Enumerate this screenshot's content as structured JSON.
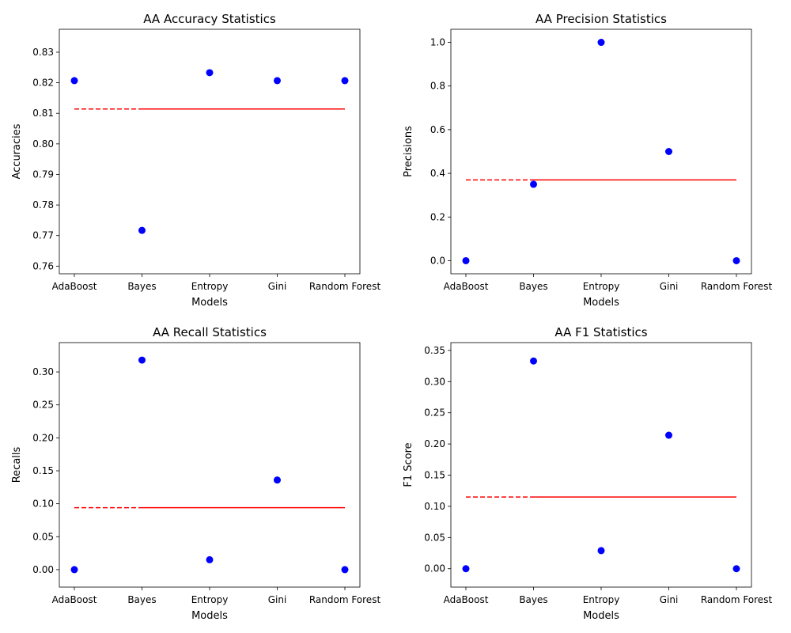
{
  "chart_data": [
    {
      "type": "scatter",
      "title": "AA Accuracy Statistics",
      "xlabel": "Models",
      "ylabel": "Accuracies",
      "categories": [
        "AdaBoost",
        "Bayes",
        "Entropy",
        "Gini",
        "Random Forest"
      ],
      "values": [
        0.8207,
        0.7717,
        0.8233,
        0.8207,
        0.8207
      ],
      "mean": 0.8114,
      "ylim": [
        0.7575,
        0.8375
      ],
      "yticks": [
        0.76,
        0.77,
        0.78,
        0.79,
        0.8,
        0.81,
        0.82,
        0.83
      ],
      "ytick_labels": [
        "0.76",
        "0.77",
        "0.78",
        "0.79",
        "0.80",
        "0.81",
        "0.82",
        "0.83"
      ],
      "point_color": "#0000ff",
      "mean_color": "#ff0000"
    },
    {
      "type": "scatter",
      "title": "AA Precision Statistics",
      "xlabel": "Models",
      "ylabel": "Precisions",
      "categories": [
        "AdaBoost",
        "Bayes",
        "Entropy",
        "Gini",
        "Random Forest"
      ],
      "values": [
        0.0,
        0.35,
        1.0,
        0.5,
        0.0
      ],
      "mean": 0.37,
      "ylim": [
        -0.06,
        1.06
      ],
      "yticks": [
        0.0,
        0.2,
        0.4,
        0.6,
        0.8,
        1.0
      ],
      "ytick_labels": [
        "0.0",
        "0.2",
        "0.4",
        "0.6",
        "0.8",
        "1.0"
      ],
      "point_color": "#0000ff",
      "mean_color": "#ff0000"
    },
    {
      "type": "scatter",
      "title": "AA Recall Statistics",
      "xlabel": "Models",
      "ylabel": "Recalls",
      "categories": [
        "AdaBoost",
        "Bayes",
        "Entropy",
        "Gini",
        "Random Forest"
      ],
      "values": [
        0.0,
        0.318,
        0.015,
        0.136,
        0.0
      ],
      "mean": 0.094,
      "ylim": [
        -0.0265,
        0.3445
      ],
      "yticks": [
        0.0,
        0.05,
        0.1,
        0.15,
        0.2,
        0.25,
        0.3
      ],
      "ytick_labels": [
        "0.00",
        "0.05",
        "0.10",
        "0.15",
        "0.20",
        "0.25",
        "0.30"
      ],
      "point_color": "#0000ff",
      "mean_color": "#ff0000"
    },
    {
      "type": "scatter",
      "title": "AA F1 Statistics",
      "xlabel": "Models",
      "ylabel": "F1 Score",
      "categories": [
        "AdaBoost",
        "Bayes",
        "Entropy",
        "Gini",
        "Random Forest"
      ],
      "values": [
        0.0,
        0.333,
        0.029,
        0.214,
        0.0
      ],
      "mean": 0.115,
      "ylim": [
        -0.0295,
        0.3625
      ],
      "yticks": [
        0.0,
        0.05,
        0.1,
        0.15,
        0.2,
        0.25,
        0.3,
        0.35
      ],
      "ytick_labels": [
        "0.00",
        "0.05",
        "0.10",
        "0.15",
        "0.20",
        "0.25",
        "0.30",
        "0.35"
      ],
      "point_color": "#0000ff",
      "mean_color": "#ff0000"
    }
  ]
}
